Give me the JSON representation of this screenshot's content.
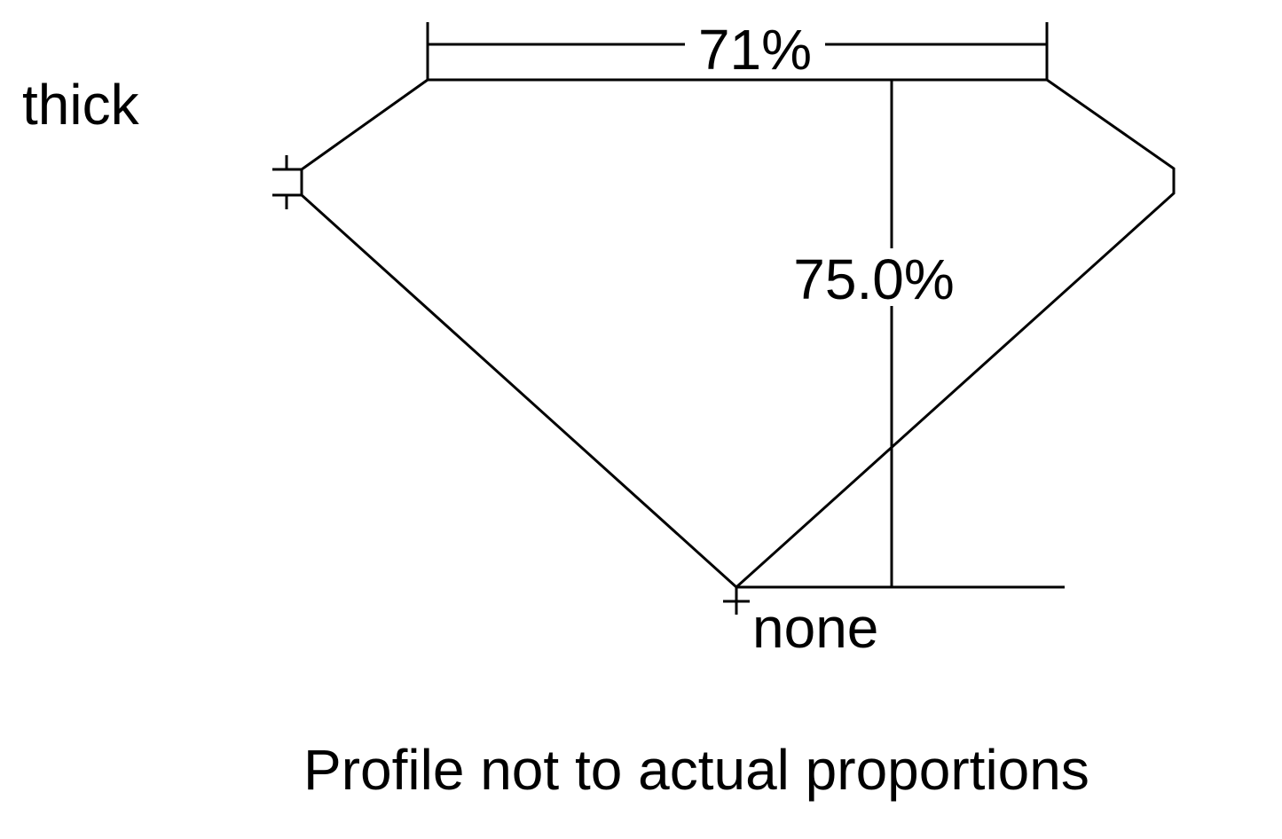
{
  "diagram": {
    "girdle_label": "thick",
    "culet_label": "none",
    "table_percent": "71%",
    "depth_percent": "75.0%",
    "note": "Profile not to actual proportions",
    "line_color": "#000000"
  }
}
